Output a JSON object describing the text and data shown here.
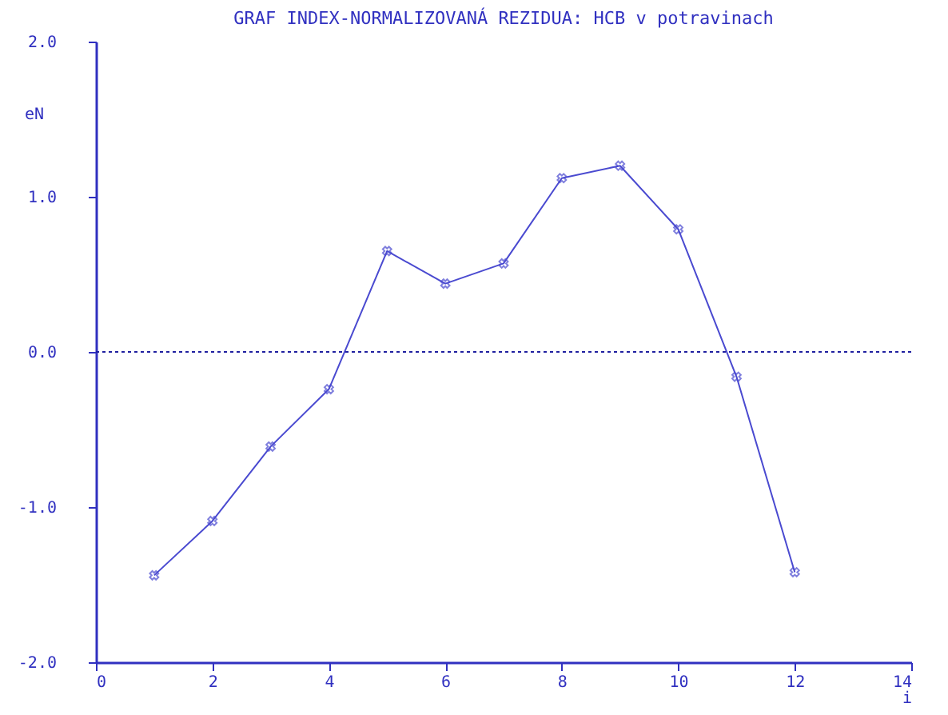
{
  "chart_data": {
    "type": "line",
    "title": "GRAF INDEX-NORMALIZOVANÁ REZIDUA: HCB v potravinach",
    "xlabel": "i",
    "ylabel": "eN",
    "x": [
      1,
      2,
      3,
      4,
      5,
      6,
      7,
      8,
      9,
      10,
      11,
      12
    ],
    "series": [
      {
        "color": "#4a4ad0",
        "values": [
          -1.44,
          -1.09,
          -0.61,
          -0.24,
          0.65,
          0.44,
          0.57,
          1.12,
          1.2,
          0.79,
          -0.16,
          -1.42
        ]
      }
    ],
    "xlim": [
      0,
      14
    ],
    "xticks": [
      0,
      2,
      4,
      6,
      8,
      10,
      12,
      14
    ],
    "ylim": [
      -2.0,
      2.0
    ],
    "yticks": [
      {
        "value": -2,
        "label": "-2.0"
      },
      {
        "value": -1,
        "label": "-1.0"
      },
      {
        "value": 0,
        "label": "0.0"
      },
      {
        "value": 1,
        "label": "1.0"
      },
      {
        "value": 2,
        "label": "2.0"
      }
    ],
    "ref_lines": [
      {
        "axis": "y",
        "value": 0,
        "color": "#2020a0",
        "line_style": "dotted"
      }
    ],
    "marker": "cross",
    "line_style": "solid",
    "grid": false
  }
}
